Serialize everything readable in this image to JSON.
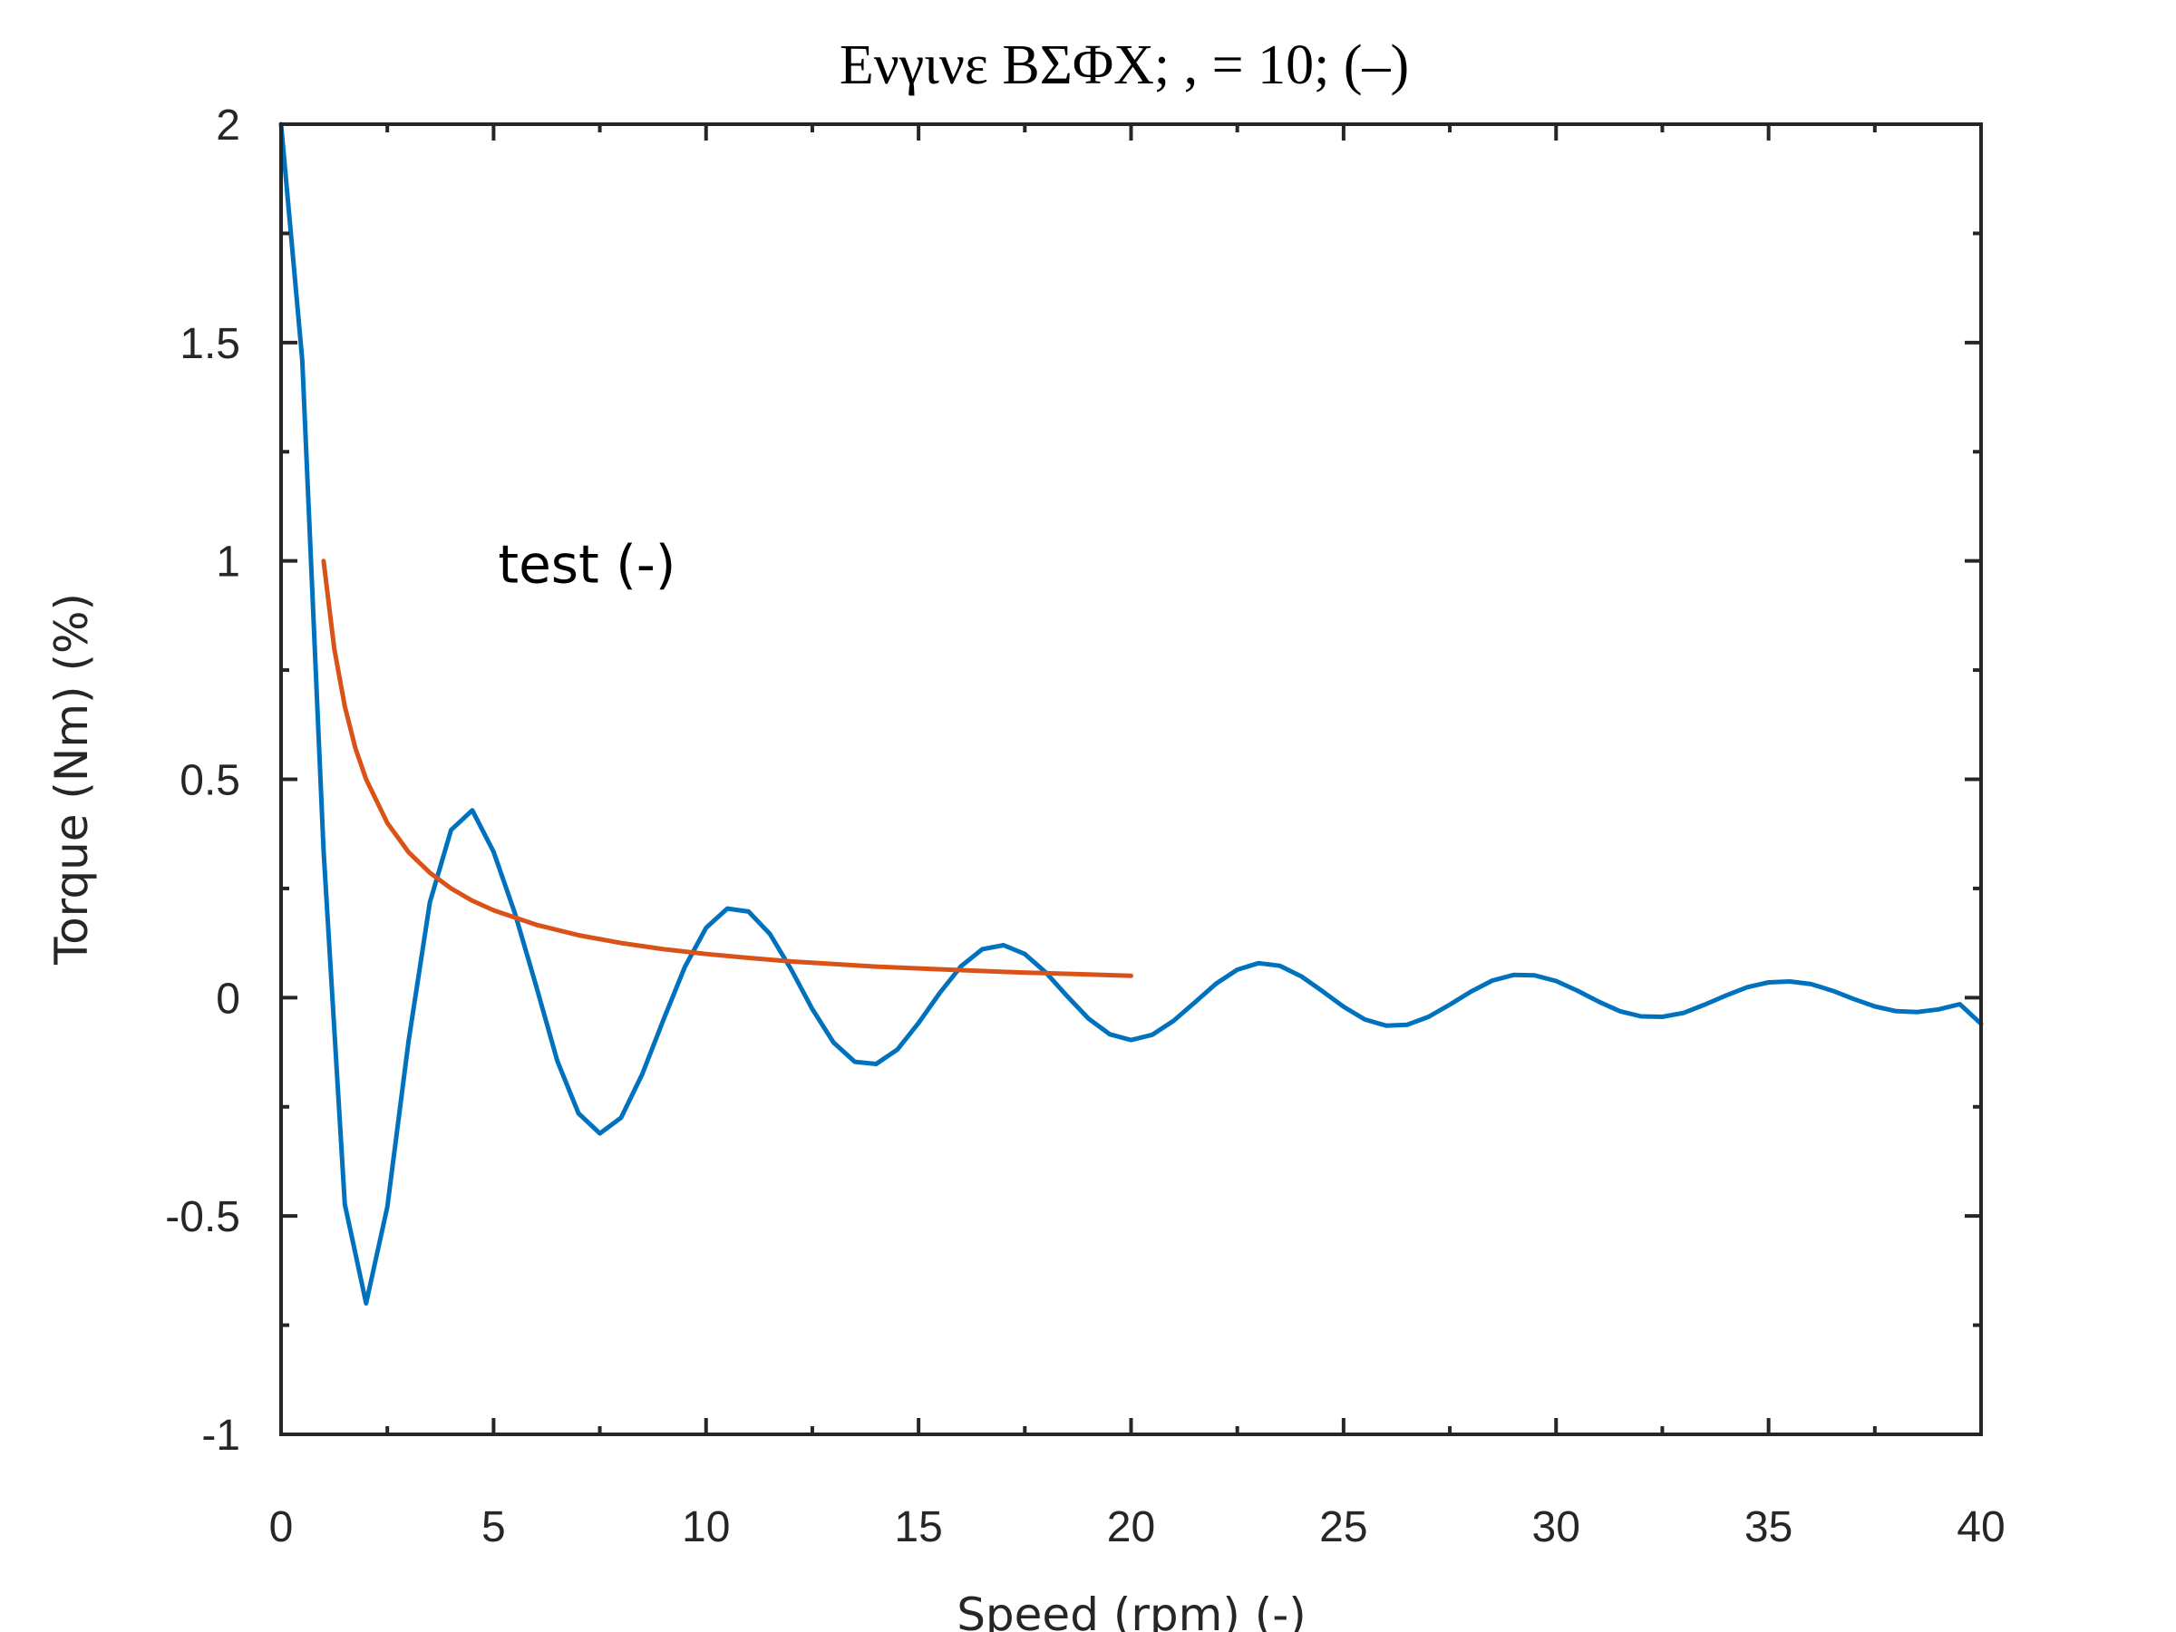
{
  "chart_data": {
    "type": "line",
    "title": "Ενγινε ΒΣΦΧ;    ,  = 10; (–)",
    "xlabel": "Speed (rpm) (-)",
    "ylabel": "Torque (Nm) (%)",
    "xlim": [
      0,
      40
    ],
    "ylim": [
      -1,
      2
    ],
    "xticks": [
      0,
      5,
      10,
      15,
      20,
      25,
      30,
      35,
      40
    ],
    "xtick_labels": [
      "0",
      "5",
      "10",
      "15",
      "20",
      "25",
      "30",
      "35",
      "40"
    ],
    "yticks": [
      -1,
      -0.5,
      0,
      0.5,
      1,
      1.5,
      2
    ],
    "ytick_labels": [
      "-1",
      "-0.5",
      "0",
      "0.5",
      "1",
      "1.5",
      "2"
    ],
    "grid": false,
    "annotations": [
      {
        "text": "test (-)",
        "x": 5,
        "y": 1
      }
    ],
    "series": [
      {
        "color": "#0072BD",
        "x": [
          0,
          0.5,
          1,
          1.5,
          2,
          2.5,
          3,
          3.5,
          4,
          4.5,
          5,
          5.5,
          6,
          6.5,
          7,
          7.5,
          8,
          8.5,
          9,
          9.5,
          10,
          10.5,
          11,
          11.5,
          12,
          12.5,
          13,
          13.5,
          14,
          14.5,
          15,
          15.5,
          16,
          16.5,
          17,
          17.5,
          18,
          18.5,
          19,
          19.5,
          20,
          20.5,
          21,
          21.5,
          22,
          22.5,
          23,
          23.5,
          24,
          24.5,
          25,
          25.5,
          26,
          26.5,
          27,
          27.5,
          28,
          28.5,
          29,
          29.5,
          30,
          30.5,
          31,
          31.5,
          32,
          32.5,
          33,
          33.5,
          34,
          34.5,
          35,
          35.5,
          36,
          36.5,
          37,
          37.5,
          38,
          38.5,
          39,
          39.5,
          40
        ],
        "y": [
          2.0,
          1.459,
          0.336,
          -0.473,
          -0.7,
          -0.479,
          -0.1,
          0.218,
          0.384,
          0.429,
          0.334,
          0.194,
          0.027,
          -0.145,
          -0.265,
          -0.311,
          -0.275,
          -0.175,
          -0.05,
          0.07,
          0.16,
          0.204,
          0.197,
          0.146,
          0.065,
          -0.026,
          -0.103,
          -0.147,
          -0.152,
          -0.119,
          -0.058,
          0.011,
          0.072,
          0.111,
          0.12,
          0.1,
          0.057,
          0.003,
          -0.048,
          -0.084,
          -0.097,
          -0.085,
          -0.053,
          -0.011,
          0.032,
          0.064,
          0.079,
          0.073,
          0.049,
          0.015,
          -0.021,
          -0.05,
          -0.064,
          -0.062,
          -0.044,
          -0.016,
          0.014,
          0.039,
          0.052,
          0.051,
          0.038,
          0.016,
          -0.009,
          -0.031,
          -0.043,
          -0.044,
          -0.035,
          -0.016,
          0.005,
          0.024,
          0.035,
          0.037,
          0.031,
          0.016,
          -0.003,
          -0.02,
          -0.031,
          -0.033,
          -0.027,
          -0.015,
          -0.06
        ]
      },
      {
        "color": "#D95319",
        "x": [
          1,
          1.25,
          1.5,
          1.75,
          2,
          2.5,
          3,
          3.5,
          4,
          4.5,
          5,
          6,
          7,
          8,
          9,
          10,
          11,
          12,
          13,
          14,
          15,
          16,
          17,
          18,
          19,
          20
        ],
        "y": [
          1.0,
          0.8,
          0.667,
          0.571,
          0.5,
          0.4,
          0.333,
          0.286,
          0.25,
          0.222,
          0.2,
          0.167,
          0.143,
          0.125,
          0.111,
          0.1,
          0.091,
          0.083,
          0.077,
          0.071,
          0.067,
          0.063,
          0.059,
          0.056,
          0.053,
          0.05
        ]
      }
    ]
  }
}
